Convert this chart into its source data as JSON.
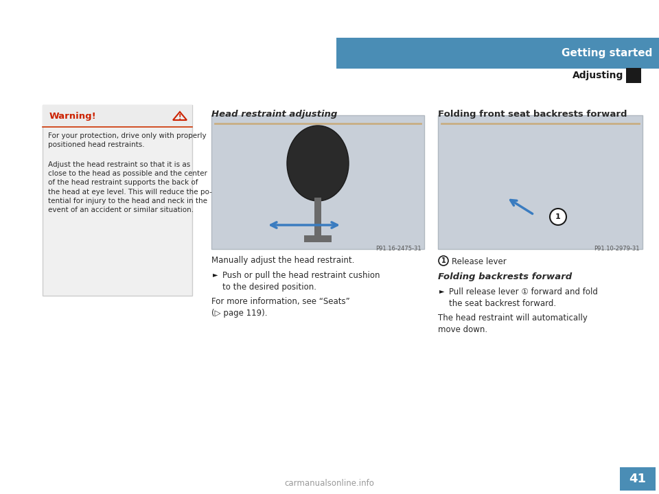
{
  "bg_color": "#ffffff",
  "header_bar_color": "#4a8db5",
  "header_text": "Getting started",
  "header_text_color": "#ffffff",
  "subheader_text": "Adjusting",
  "subheader_text_color": "#1a1a1a",
  "black_square_color": "#1a1a1a",
  "page_number": "41",
  "page_number_bg": "#4a8db5",
  "page_number_color": "#ffffff",
  "warning_box_border": "#cccccc",
  "warning_box_bg": "#f0f0f0",
  "warning_title_bg": "#f0f0f0",
  "warning_title": "Warning!",
  "warning_title_color": "#cc2200",
  "warning_line_color": "#cc3300",
  "warning_triangle_color": "#cc2200",
  "warning_text_1": "For your protection, drive only with properly\npositioned head restraints.",
  "warning_text_2": "Adjust the head restraint so that it is as\nclose to the head as possible and the center\nof the head restraint supports the back of\nthe head at eye level. This will reduce the po-\ntential for injury to the head and neck in the\nevent of an accident or similar situation.",
  "section1_title": "Head restraint adjusting",
  "section1_img_caption": "P91.16-2475-31",
  "section1_text1": "Manually adjust the head restraint.",
  "section1_bullet1": "Push or pull the head restraint cushion\nto the desired position.",
  "section1_text2": "For more information, see “Seats”\n(▷ page 119).",
  "section2_title": "Folding front seat backrests forward",
  "section2_img_caption": "P91.10-2979-31",
  "section2_label1": "Release lever",
  "section2_subtitle": "Folding backrests forward",
  "section2_bullet1": "Pull release lever ① forward and fold\nthe seat backrest forward.",
  "section2_text1": "The head restraint will automatically\nmove down.",
  "watermark_text": "carmanualsonline.info",
  "img_bg_color": "#c8cfd8",
  "img_border_color": "#b0b8c0",
  "text_color": "#2a2a2a",
  "bullet_color": "#1a1a1a"
}
